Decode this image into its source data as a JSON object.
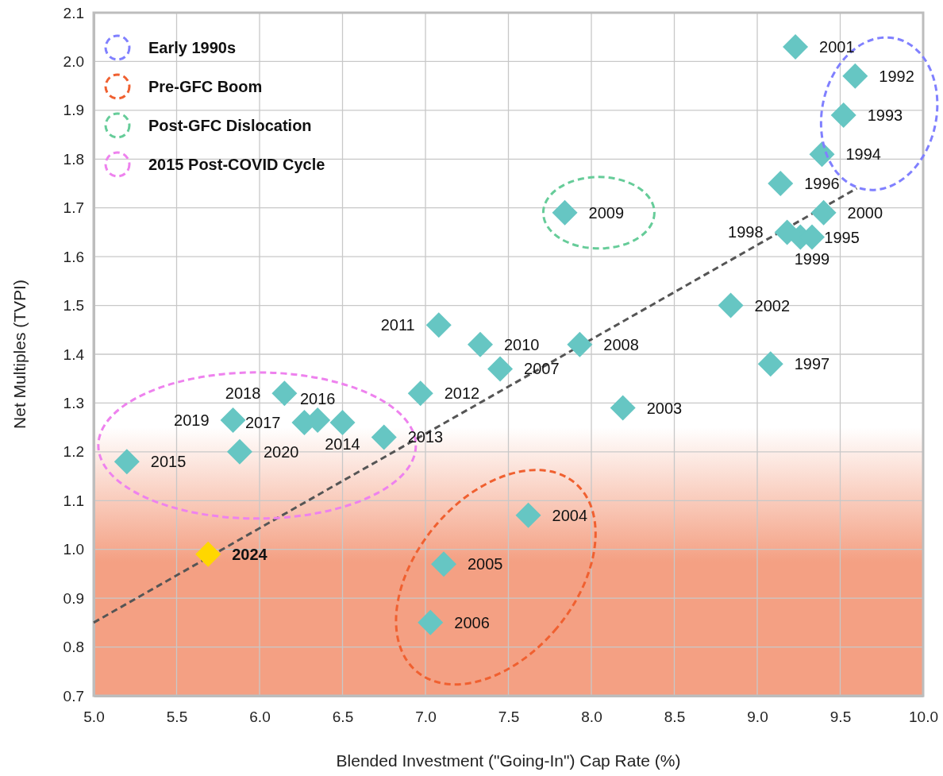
{
  "chart_data": {
    "type": "scatter",
    "xlabel": "Blended Investment (\"Going-In\") Cap Rate (%)",
    "ylabel": "Net Multiples (TVPI)",
    "xlim": [
      5.0,
      10.0
    ],
    "xticks": [
      {
        "value": 5,
        "label": "5.0"
      },
      5.5,
      {
        "value": 6,
        "label": "6.0"
      },
      6.5,
      {
        "value": 7,
        "label": "7.0"
      },
      7.5,
      {
        "value": 8,
        "label": "8.0"
      },
      8.5,
      {
        "value": 9,
        "label": "9.0"
      },
      9.5,
      {
        "value": 10,
        "label": "10.0"
      }
    ],
    "ylim": [
      0.7,
      2.1
    ],
    "yticks": [
      0.7,
      0.8,
      0.9,
      {
        "value": 1,
        "label": "1.0"
      },
      1.1,
      1.2,
      1.3,
      1.4,
      1.5,
      1.6,
      1.7,
      1.8,
      1.9,
      {
        "value": 2,
        "label": "2.0"
      },
      2.1
    ],
    "grid": true,
    "bands": [
      {
        "axis": "y",
        "from": 0.7,
        "to": 1.25,
        "color": "#f4a083"
      }
    ],
    "annotations": [
      {
        "text": "1992",
        "x": 9.59,
        "y": 1.97
      },
      {
        "text": "1993",
        "x": 9.52,
        "y": 1.89
      },
      {
        "text": "1994",
        "x": 9.39,
        "y": 1.81
      },
      {
        "text": "1995",
        "x": 9.26,
        "y": 1.64
      },
      {
        "text": "1996",
        "x": 9.14,
        "y": 1.75
      },
      {
        "text": "1997",
        "x": 9.08,
        "y": 1.38
      },
      {
        "text": "1998",
        "x": 9.18,
        "y": 1.65
      },
      {
        "text": "1999",
        "x": 9.33,
        "y": 1.64
      },
      {
        "text": "2000",
        "x": 9.4,
        "y": 1.69
      },
      {
        "text": "2001",
        "x": 9.23,
        "y": 2.03
      },
      {
        "text": "2002",
        "x": 8.84,
        "y": 1.5
      },
      {
        "text": "2003",
        "x": 8.19,
        "y": 1.29
      },
      {
        "text": "2004",
        "x": 7.62,
        "y": 1.07
      },
      {
        "text": "2005",
        "x": 7.11,
        "y": 0.97
      },
      {
        "text": "2006",
        "x": 7.03,
        "y": 0.85
      },
      {
        "text": "2007",
        "x": 7.45,
        "y": 1.37
      },
      {
        "text": "2008",
        "x": 7.93,
        "y": 1.42
      },
      {
        "text": "2009",
        "x": 7.84,
        "y": 1.69
      },
      {
        "text": "2010",
        "x": 7.33,
        "y": 1.42
      },
      {
        "text": "2011",
        "x": 7.08,
        "y": 1.46
      },
      {
        "text": "2012",
        "x": 6.97,
        "y": 1.32
      },
      {
        "text": "2013",
        "x": 6.75,
        "y": 1.23
      },
      {
        "text": "2014",
        "x": 6.5,
        "y": 1.26
      },
      {
        "text": "2015",
        "x": 5.2,
        "y": 1.18
      },
      {
        "text": "2016",
        "x": 6.35,
        "y": 1.265
      },
      {
        "text": "2017",
        "x": 6.27,
        "y": 1.26
      },
      {
        "text": "2018",
        "x": 6.15,
        "y": 1.32
      },
      {
        "text": "2019",
        "x": 5.84,
        "y": 1.265
      },
      {
        "text": "2020",
        "x": 5.88,
        "y": 1.2
      },
      {
        "text": "2024",
        "x": 5.69,
        "y": 0.99
      },
      "Early 1990s",
      "Pre-GFC Boom",
      "Post-GFC Dislocation",
      "2015 Post-COVID Cycle"
    ],
    "series": [
      {
        "color": "#66c6c3",
        "marker": "diamond",
        "x": [
          9.59,
          9.52,
          9.39,
          9.26,
          9.14,
          9.08,
          9.18,
          9.33,
          9.4,
          9.23,
          8.84,
          8.19,
          7.62,
          7.11,
          7.03,
          7.45,
          7.93,
          7.84,
          7.33,
          7.08,
          6.97,
          6.75,
          6.5,
          5.2,
          6.35,
          6.27,
          6.15,
          5.84,
          5.88
        ],
        "values": [
          1.97,
          1.89,
          1.81,
          1.64,
          1.75,
          1.38,
          1.65,
          1.64,
          1.69,
          2.03,
          1.5,
          1.29,
          1.07,
          0.97,
          0.85,
          1.37,
          1.42,
          1.69,
          1.42,
          1.46,
          1.32,
          1.23,
          1.26,
          1.18,
          1.265,
          1.26,
          1.32,
          1.265,
          1.2
        ]
      },
      {
        "color": "#ffd700",
        "marker": "diamond",
        "x": [
          5.69
        ],
        "values": [
          0.99
        ]
      },
      {
        "type": "line",
        "color": "#555555",
        "line_style": "dashed",
        "x": [
          5.0,
          9.6
        ],
        "values": [
          0.85,
          1.74
        ]
      }
    ]
  }
}
